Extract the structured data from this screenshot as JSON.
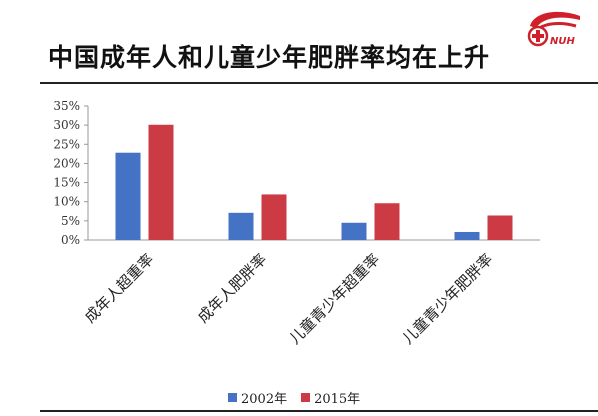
{
  "slide": {
    "title": "中国成年人和儿童少年肥胖率均在上升"
  },
  "logo": {
    "text": "NUH",
    "color": "#d0202a"
  },
  "chart_data": {
    "type": "bar",
    "categories": [
      "成年人超重率",
      "成年人肥胖率",
      "儿童青少年超重率",
      "儿童青少年肥胖率"
    ],
    "series": [
      {
        "name": "2002年",
        "values": [
          22.8,
          7.1,
          4.5,
          2.1
        ],
        "color": "#4472c4"
      },
      {
        "name": "2015年",
        "values": [
          30.1,
          11.9,
          9.6,
          6.4
        ],
        "color": "#cc3a44"
      }
    ],
    "yticks": [
      "0%",
      "5%",
      "10%",
      "15%",
      "20%",
      "25%",
      "30%",
      "35%"
    ],
    "ylim": [
      0,
      35
    ],
    "grid": false,
    "legend": "bottom"
  }
}
